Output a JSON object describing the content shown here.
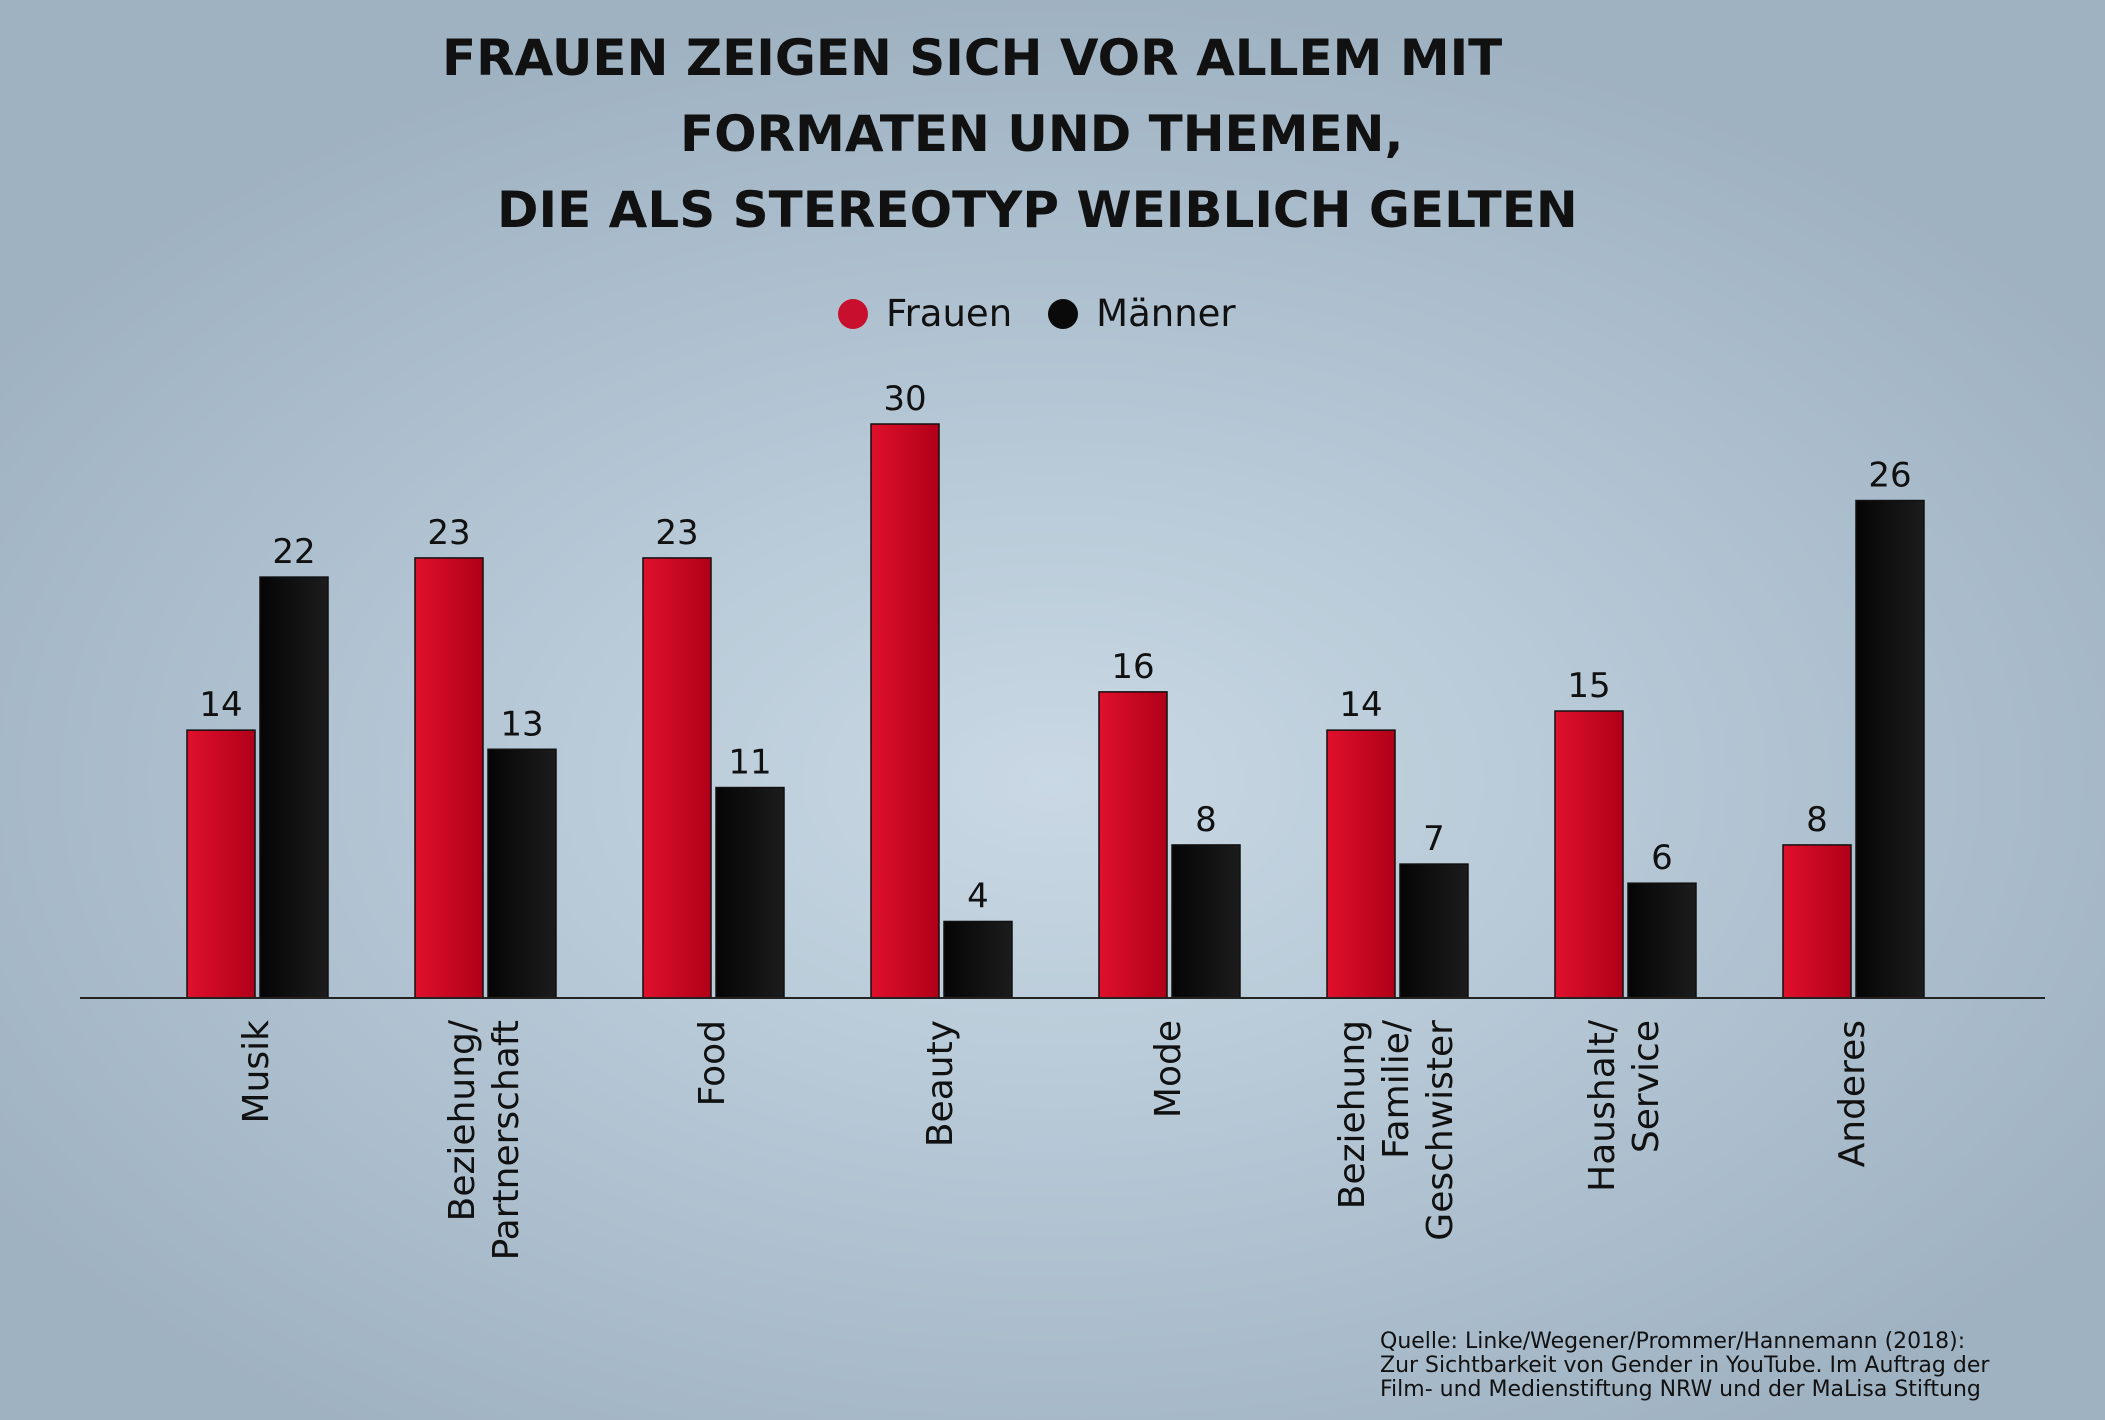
{
  "title_lines": [
    "FRAUEN ZEIGEN SICH VOR ALLEM MIT",
    "FORMATEN UND THEMEN,",
    "DIE ALS STEREOTYP WEIBLICH GELTEN"
  ],
  "source_lines": [
    "Quelle: Linke/Wegener/Prommer/Hannemann (2018):",
    "Zur Sichtbarkeit von Gender in YouTube. Im Auftrag der",
    "Film- und Medienstiftung NRW und der MaLisa Stiftung"
  ],
  "colors": {
    "frauen": "#c8102e",
    "maenner": "#0a0a0a"
  },
  "chart_data": {
    "type": "bar",
    "title": "FRAUEN ZEIGEN SICH VOR ALLEM MIT FORMATEN UND THEMEN, DIE ALS STEREOTYP WEIBLICH GELTEN",
    "categories": [
      [
        "Musik"
      ],
      [
        "Beziehung/",
        "Partnerschaft"
      ],
      [
        "Food"
      ],
      [
        "Beauty"
      ],
      [
        "Mode"
      ],
      [
        "Beziehung",
        "Familie/",
        "Geschwister"
      ],
      [
        "Haushalt/",
        "Service"
      ],
      [
        "Anderes"
      ]
    ],
    "series": [
      {
        "name": "Frauen",
        "values": [
          14,
          23,
          23,
          30,
          16,
          14,
          15,
          8
        ]
      },
      {
        "name": "Männer",
        "values": [
          22,
          13,
          11,
          4,
          8,
          7,
          6,
          26
        ]
      }
    ],
    "ylim": [
      0,
      30
    ],
    "legend_position": "top-center",
    "grid": false,
    "data_labels": true
  }
}
